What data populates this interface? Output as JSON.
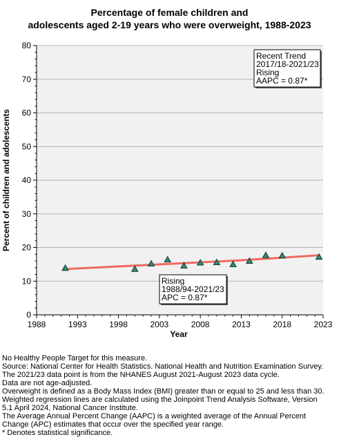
{
  "chart_data": {
    "type": "scatter",
    "title_lines": [
      "Percentage of female children and",
      "adolescents aged 2-19 years who were overweight, 1988-2023"
    ],
    "xlabel": "Year",
    "ylabel": "Percent of children and adolescents",
    "xlim": [
      1988,
      2023
    ],
    "ylim": [
      0,
      80
    ],
    "x_ticks": [
      1988,
      1993,
      1998,
      2003,
      2008,
      2013,
      2018,
      2023
    ],
    "y_ticks": [
      0,
      10,
      20,
      30,
      40,
      50,
      60,
      70,
      80
    ],
    "grid": true,
    "points": [
      {
        "x": 1991.5,
        "y": 13.9
      },
      {
        "x": 2000.0,
        "y": 13.6
      },
      {
        "x": 2002.0,
        "y": 15.2
      },
      {
        "x": 2004.0,
        "y": 16.4
      },
      {
        "x": 2006.0,
        "y": 14.6
      },
      {
        "x": 2008.0,
        "y": 15.5
      },
      {
        "x": 2010.0,
        "y": 15.6
      },
      {
        "x": 2012.0,
        "y": 15.0
      },
      {
        "x": 2014.0,
        "y": 16.0
      },
      {
        "x": 2016.0,
        "y": 17.7
      },
      {
        "x": 2018.0,
        "y": 17.6
      },
      {
        "x": 2022.5,
        "y": 17.2
      }
    ],
    "trend_line": [
      {
        "x": 1991.5,
        "y": 13.6
      },
      {
        "x": 2013.0,
        "y": 16.2
      },
      {
        "x": 2022.5,
        "y": 17.7
      }
    ],
    "colors": {
      "point_fill": "#2f8a7a",
      "point_stroke": "#1a3a34",
      "trend_line": "#f0695f",
      "plot_background": "#f1f1f1",
      "grid": "#b3b3b3"
    },
    "annotations": {
      "recent": [
        "Recent Trend",
        "2017/18-2021/23",
        "Rising",
        "AAPC =  0.87*"
      ],
      "overall": [
        "Rising",
        "1988/94-2021/23",
        "APC =  0.87*"
      ]
    }
  },
  "footnotes": [
    "No Healthy People Target for this measure.",
    "Source: National Center for Health Statistics. National Health and Nutrition Examination Survey.",
    "The 2021/23 data point is from the NHANES August 2021-August 2023 data cycle.",
    "Data are not age-adjusted.",
    "Overweight is defined as a Body Mass Index (BMI) greater than or equal to 25 and less than 30.",
    "Weighted regression lines are calculated using the Joinpoint Trend Analysis Software, Version",
    "5.1 April 2024, National Cancer Institute.",
    "The Average Annual Percent Change (AAPC) is a weighted average of the Annual Percent",
    "Change (APC) estimates that occur over the specified year range.",
    "* Denotes statistical significance."
  ]
}
